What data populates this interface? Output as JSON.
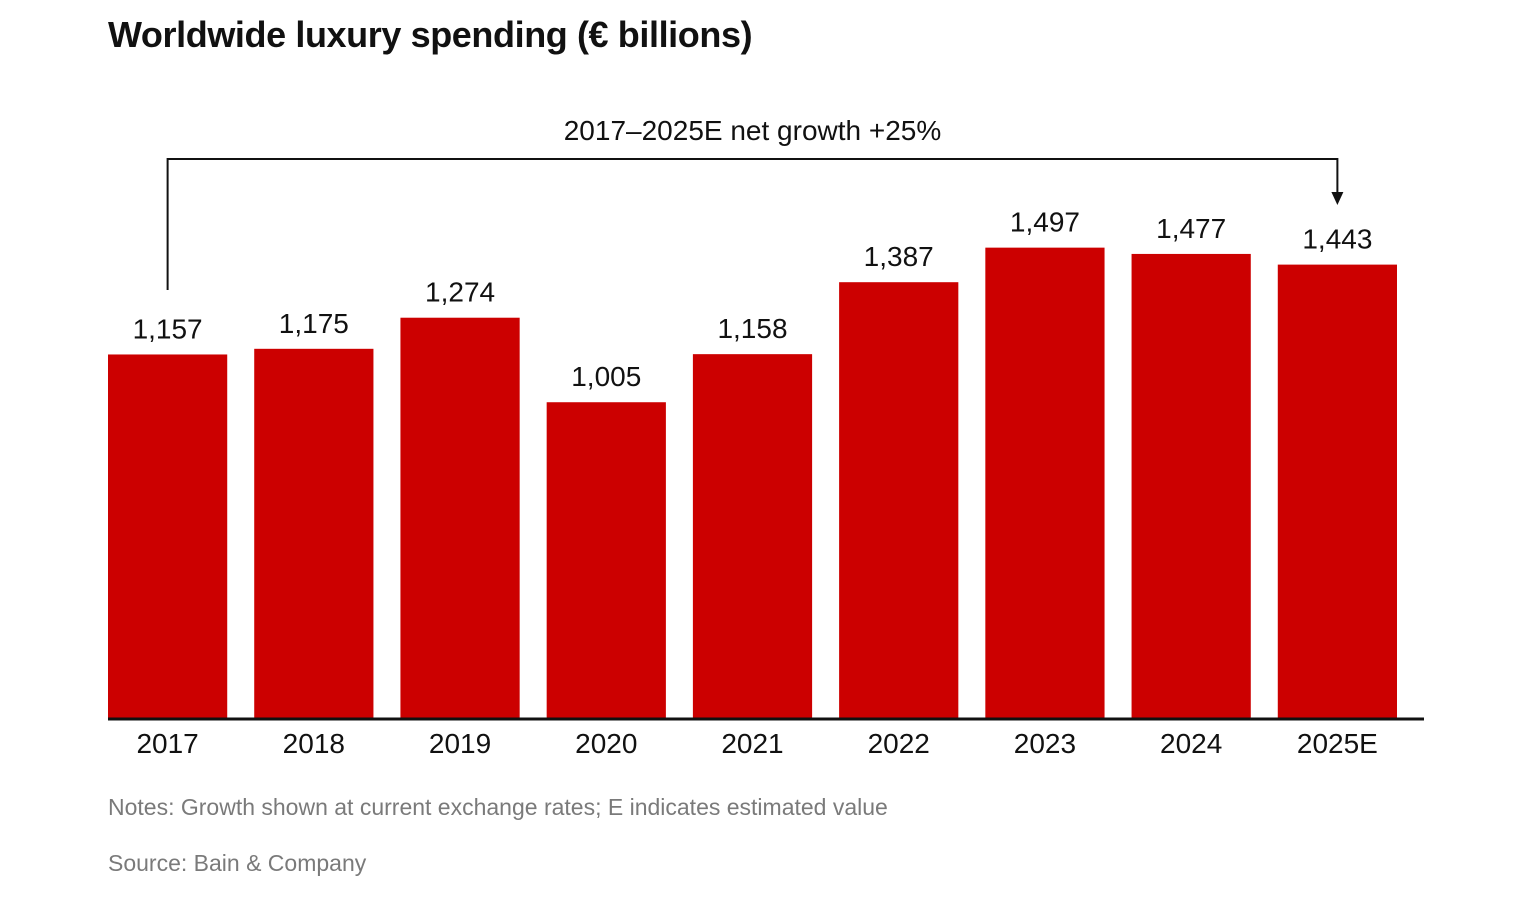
{
  "chart_data": {
    "type": "bar",
    "title": "Worldwide luxury spending (€ billions)",
    "categories": [
      "2017",
      "2018",
      "2019",
      "2020",
      "2021",
      "2022",
      "2023",
      "2024",
      "2025E"
    ],
    "values": [
      1157,
      1175,
      1274,
      1005,
      1158,
      1387,
      1497,
      1477,
      1443
    ],
    "value_labels": [
      "1,157",
      "1,175",
      "1,274",
      "1,005",
      "1,158",
      "1,387",
      "1,497",
      "1,477",
      "1,443"
    ],
    "annotation": {
      "text": "2017–2025E net growth +25%",
      "from": "2017",
      "to": "2025E"
    },
    "ylim": [
      0,
      1600
    ],
    "grid": false,
    "legend": "none",
    "bar_color": "#cc0000",
    "axis_color": "#111111"
  },
  "notes": "Notes: Growth shown at current exchange rates; E indicates estimated value",
  "source": "Source: Bain & Company"
}
